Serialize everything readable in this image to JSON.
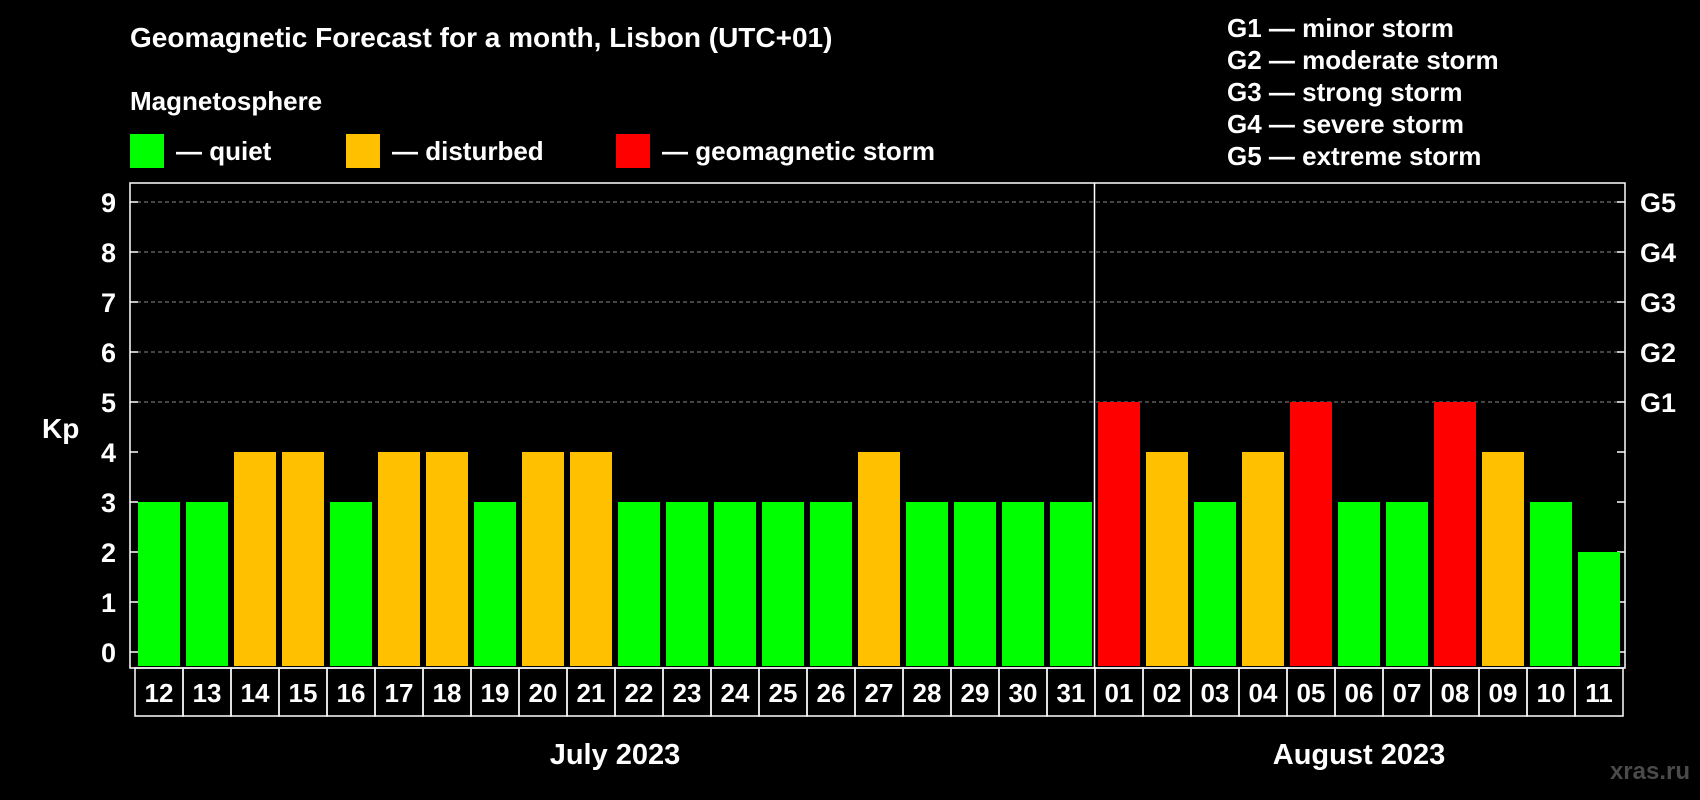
{
  "title": "Geomagnetic Forecast for a month, Lisbon (UTC+01)",
  "magnetosphere": {
    "title": "Magnetosphere",
    "legend": [
      {
        "label": "— quiet",
        "color": "#00ff00"
      },
      {
        "label": "— disturbed",
        "color": "#ffc000"
      },
      {
        "label": "— geomagnetic storm",
        "color": "#ff0000"
      }
    ]
  },
  "storm_legend": [
    "G1 — minor storm",
    "G2 — moderate storm",
    "G3 — strong storm",
    "G4 — severe storm",
    "G5 — extreme storm"
  ],
  "watermark": "xras.ru",
  "chart_data": {
    "type": "bar",
    "ylabel": "Kp",
    "ylim": [
      0,
      9
    ],
    "yticks": [
      "0",
      "1",
      "2",
      "3",
      "4",
      "5",
      "6",
      "7",
      "8",
      "9"
    ],
    "grid": "dashed lines at Kp 5–9",
    "right_axis": [
      {
        "label": "G1",
        "kp": 5
      },
      {
        "label": "G2",
        "kp": 6
      },
      {
        "label": "G3",
        "kp": 7
      },
      {
        "label": "G4",
        "kp": 8
      },
      {
        "label": "G5",
        "kp": 9
      }
    ],
    "months": [
      {
        "label": "July 2023",
        "days": [
          "12",
          "13",
          "14",
          "15",
          "16",
          "17",
          "18",
          "19",
          "20",
          "21",
          "22",
          "23",
          "24",
          "25",
          "26",
          "27",
          "28",
          "29",
          "30",
          "31"
        ]
      },
      {
        "label": "August 2023",
        "days": [
          "01",
          "02",
          "03",
          "04",
          "05",
          "06",
          "07",
          "08",
          "09",
          "10",
          "11"
        ]
      }
    ],
    "values": [
      3,
      3,
      4,
      4,
      3,
      4,
      4,
      3,
      4,
      4,
      3,
      3,
      3,
      3,
      3,
      4,
      3,
      3,
      3,
      3,
      5,
      4,
      3,
      4,
      5,
      3,
      3,
      5,
      4,
      3,
      2
    ],
    "colors": {
      "quiet": "#00ff00",
      "disturbed": "#ffc000",
      "storm": "#ff0000"
    }
  }
}
